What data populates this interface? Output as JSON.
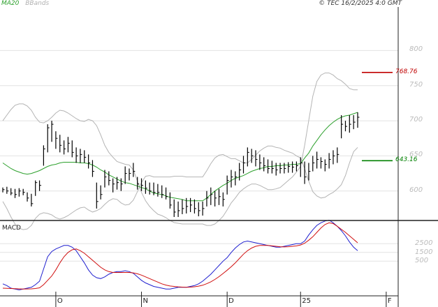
{
  "header": {
    "indicators": [
      "MA20",
      "BBands"
    ],
    "copyright": "© TEC 16/2/2025 4:0 GMT"
  },
  "levels": [
    {
      "label": "768.76",
      "value": 768.76,
      "color": "#c00000"
    },
    {
      "label": "643.16",
      "value": 643.16,
      "color": "#008000"
    }
  ],
  "macd_title": "MACD",
  "colors": {
    "ma": "#2ca02c",
    "bands": "#b4b4b4",
    "price": "#000000",
    "macd": "#1f1fcf",
    "signal": "#d01010"
  },
  "chart_data": [
    {
      "type": "line",
      "title": "",
      "ylim": [
        560,
        860
      ],
      "yticks": [
        600,
        650,
        700,
        750,
        800
      ],
      "ytick_labels": [
        "600",
        "650",
        "700",
        "750",
        "800"
      ],
      "xtick_labels": [
        "O",
        "N",
        "D",
        "25",
        "F"
      ],
      "xtick_idx": [
        13,
        34,
        55,
        73,
        94
      ],
      "series": [
        {
          "name": "MA20",
          "values": [
            640,
            636,
            632,
            629,
            627,
            625,
            624,
            625,
            627,
            629,
            632,
            635,
            637,
            638,
            640,
            641,
            641,
            641,
            641,
            640,
            640,
            639,
            637,
            634,
            630,
            627,
            623,
            620,
            617,
            614,
            612,
            611,
            609,
            607,
            605,
            603,
            600,
            597,
            596,
            595,
            593,
            591,
            590,
            589,
            588,
            586,
            586,
            586,
            586,
            586,
            590,
            595,
            600,
            604,
            608,
            611,
            615,
            618,
            620,
            622,
            625,
            628,
            630,
            632,
            633,
            635,
            635,
            636,
            636,
            637,
            637,
            638,
            638,
            639,
            647,
            654,
            664,
            672,
            680,
            687,
            693,
            698,
            702,
            705,
            707,
            708,
            710,
            712
          ]
        },
        {
          "name": "BBands",
          "values": [
            700,
            708,
            716,
            722,
            724,
            724,
            721,
            715,
            705,
            698,
            697,
            700,
            705,
            711,
            715,
            714,
            711,
            707,
            703,
            700,
            699,
            702,
            700,
            693,
            680,
            665,
            655,
            648,
            642,
            640,
            638,
            637,
            630,
            614,
            598,
            586,
            578,
            572,
            567,
            565,
            562,
            558,
            555,
            554,
            553,
            553,
            553,
            553,
            553,
            553,
            551,
            551,
            553,
            558,
            564,
            573,
            583,
            590,
            598,
            603,
            607,
            610,
            610,
            608,
            605,
            602,
            602,
            603,
            605,
            610,
            615,
            620,
            627,
            635,
            665,
            700,
            735,
            756,
            765,
            768,
            768,
            765,
            760,
            757,
            752,
            746,
            744,
            744
          ]
        },
        {
          "name": "BBandsLower",
          "values": [
            585,
            575,
            563,
            553,
            547,
            545,
            546,
            551,
            561,
            567,
            569,
            568,
            566,
            562,
            560,
            562,
            565,
            569,
            573,
            576,
            577,
            573,
            570,
            572,
            575,
            581,
            586,
            589,
            588,
            583,
            580,
            581,
            587,
            599,
            612,
            621,
            622,
            620,
            620,
            620,
            620,
            620,
            621,
            621,
            621,
            620,
            620,
            620,
            620,
            620,
            629,
            639,
            647,
            651,
            652,
            649,
            646,
            646,
            643,
            640,
            640,
            645,
            651,
            657,
            661,
            664,
            664,
            662,
            661,
            658,
            656,
            654,
            650,
            647,
            632,
            614,
            599,
            593,
            590,
            591,
            595,
            598,
            603,
            609,
            622,
            640,
            656,
            662
          ]
        }
      ],
      "ohlc": [
        {
          "h": 605,
          "l": 598,
          "c": 602
        },
        {
          "h": 606,
          "l": 596,
          "c": 600
        },
        {
          "h": 604,
          "l": 594,
          "c": 597
        },
        {
          "h": 603,
          "l": 590,
          "c": 595
        },
        {
          "h": 604,
          "l": 592,
          "c": 600
        },
        {
          "h": 603,
          "l": 594,
          "c": 598
        },
        {
          "h": 598,
          "l": 585,
          "c": 590
        },
        {
          "h": 596,
          "l": 578,
          "c": 582
        },
        {
          "h": 615,
          "l": 593,
          "c": 612
        },
        {
          "h": 615,
          "l": 600,
          "c": 608
        },
        {
          "h": 665,
          "l": 636,
          "c": 660
        },
        {
          "h": 695,
          "l": 655,
          "c": 690
        },
        {
          "h": 700,
          "l": 670,
          "c": 695
        },
        {
          "h": 685,
          "l": 660,
          "c": 675
        },
        {
          "h": 680,
          "l": 655,
          "c": 665
        },
        {
          "h": 672,
          "l": 652,
          "c": 660
        },
        {
          "h": 677,
          "l": 655,
          "c": 668
        },
        {
          "h": 672,
          "l": 648,
          "c": 655
        },
        {
          "h": 662,
          "l": 640,
          "c": 650
        },
        {
          "h": 660,
          "l": 640,
          "c": 652
        },
        {
          "h": 658,
          "l": 640,
          "c": 648
        },
        {
          "h": 652,
          "l": 632,
          "c": 640
        },
        {
          "h": 644,
          "l": 620,
          "c": 628
        },
        {
          "h": 612,
          "l": 575,
          "c": 585
        },
        {
          "h": 608,
          "l": 588,
          "c": 595
        },
        {
          "h": 630,
          "l": 605,
          "c": 620
        },
        {
          "h": 628,
          "l": 608,
          "c": 615
        },
        {
          "h": 618,
          "l": 598,
          "c": 610
        },
        {
          "h": 620,
          "l": 602,
          "c": 612
        },
        {
          "h": 618,
          "l": 600,
          "c": 610
        },
        {
          "h": 635,
          "l": 610,
          "c": 625
        },
        {
          "h": 632,
          "l": 615,
          "c": 625
        },
        {
          "h": 640,
          "l": 620,
          "c": 628
        },
        {
          "h": 620,
          "l": 602,
          "c": 610
        },
        {
          "h": 618,
          "l": 600,
          "c": 608
        },
        {
          "h": 615,
          "l": 596,
          "c": 604
        },
        {
          "h": 612,
          "l": 595,
          "c": 600
        },
        {
          "h": 612,
          "l": 594,
          "c": 598
        },
        {
          "h": 610,
          "l": 592,
          "c": 598
        },
        {
          "h": 608,
          "l": 590,
          "c": 595
        },
        {
          "h": 605,
          "l": 588,
          "c": 592
        },
        {
          "h": 598,
          "l": 575,
          "c": 580
        },
        {
          "h": 588,
          "l": 563,
          "c": 570
        },
        {
          "h": 585,
          "l": 563,
          "c": 572
        },
        {
          "h": 588,
          "l": 567,
          "c": 575
        },
        {
          "h": 590,
          "l": 568,
          "c": 578
        },
        {
          "h": 590,
          "l": 570,
          "c": 580
        },
        {
          "h": 588,
          "l": 568,
          "c": 575
        },
        {
          "h": 584,
          "l": 564,
          "c": 572
        },
        {
          "h": 585,
          "l": 565,
          "c": 575
        },
        {
          "h": 600,
          "l": 578,
          "c": 590
        },
        {
          "h": 605,
          "l": 580,
          "c": 595
        },
        {
          "h": 600,
          "l": 578,
          "c": 590
        },
        {
          "h": 603,
          "l": 580,
          "c": 592
        },
        {
          "h": 598,
          "l": 578,
          "c": 588
        },
        {
          "h": 622,
          "l": 595,
          "c": 615
        },
        {
          "h": 630,
          "l": 605,
          "c": 620
        },
        {
          "h": 628,
          "l": 608,
          "c": 620
        },
        {
          "h": 640,
          "l": 615,
          "c": 630
        },
        {
          "h": 650,
          "l": 625,
          "c": 640
        },
        {
          "h": 662,
          "l": 635,
          "c": 655
        },
        {
          "h": 660,
          "l": 640,
          "c": 650
        },
        {
          "h": 658,
          "l": 635,
          "c": 645
        },
        {
          "h": 652,
          "l": 630,
          "c": 640
        },
        {
          "h": 648,
          "l": 628,
          "c": 636
        },
        {
          "h": 645,
          "l": 625,
          "c": 632
        },
        {
          "h": 643,
          "l": 625,
          "c": 632
        },
        {
          "h": 640,
          "l": 622,
          "c": 630
        },
        {
          "h": 640,
          "l": 625,
          "c": 632
        },
        {
          "h": 640,
          "l": 625,
          "c": 632
        },
        {
          "h": 641,
          "l": 626,
          "c": 635
        },
        {
          "h": 642,
          "l": 626,
          "c": 634
        },
        {
          "h": 642,
          "l": 628,
          "c": 636
        },
        {
          "h": 648,
          "l": 620,
          "c": 640
        },
        {
          "h": 642,
          "l": 610,
          "c": 620
        },
        {
          "h": 640,
          "l": 615,
          "c": 628
        },
        {
          "h": 650,
          "l": 628,
          "c": 640
        },
        {
          "h": 656,
          "l": 632,
          "c": 645
        },
        {
          "h": 648,
          "l": 632,
          "c": 642
        },
        {
          "h": 645,
          "l": 628,
          "c": 638
        },
        {
          "h": 654,
          "l": 632,
          "c": 645
        },
        {
          "h": 658,
          "l": 638,
          "c": 650
        },
        {
          "h": 662,
          "l": 640,
          "c": 652
        },
        {
          "h": 708,
          "l": 675,
          "c": 695
        },
        {
          "h": 700,
          "l": 685,
          "c": 692
        },
        {
          "h": 708,
          "l": 683,
          "c": 695
        },
        {
          "h": 708,
          "l": 688,
          "c": 698
        },
        {
          "h": 712,
          "l": 690,
          "c": 705
        }
      ]
    },
    {
      "type": "line",
      "title": "MACD",
      "ylim": [
        -3000,
        5000
      ],
      "yticks": [
        500,
        1500,
        2500
      ],
      "ytick_labels": [
        "500",
        "1500",
        "2500"
      ],
      "series": [
        {
          "name": "MACD",
          "values": [
            -2100,
            -2300,
            -2600,
            -2700,
            -2800,
            -2700,
            -2600,
            -2500,
            -2200,
            -1800,
            -400,
            1000,
            1600,
            1900,
            2100,
            2300,
            2300,
            2100,
            1700,
            1000,
            300,
            -500,
            -1100,
            -1400,
            -1500,
            -1300,
            -1000,
            -800,
            -700,
            -700,
            -600,
            -700,
            -900,
            -1300,
            -1700,
            -2000,
            -2200,
            -2400,
            -2500,
            -2600,
            -2700,
            -2700,
            -2600,
            -2500,
            -2500,
            -2500,
            -2400,
            -2300,
            -2100,
            -1800,
            -1400,
            -1000,
            -500,
            0,
            500,
            900,
            1500,
            2000,
            2400,
            2700,
            2800,
            2700,
            2600,
            2500,
            2400,
            2300,
            2200,
            2100,
            2100,
            2200,
            2300,
            2400,
            2500,
            2500,
            2800,
            3500,
            4100,
            4600,
            4900,
            5100,
            5200,
            4900,
            4500,
            4000,
            3400,
            2700,
            2100,
            1700
          ]
        },
        {
          "name": "Signal",
          "values": [
            -2600,
            -2620,
            -2640,
            -2660,
            -2680,
            -2700,
            -2690,
            -2680,
            -2640,
            -2560,
            -2200,
            -1700,
            -1200,
            -500,
            300,
            1000,
            1500,
            1800,
            1900,
            1700,
            1400,
            1000,
            600,
            200,
            -200,
            -500,
            -700,
            -800,
            -800,
            -800,
            -800,
            -800,
            -850,
            -950,
            -1100,
            -1300,
            -1500,
            -1700,
            -1900,
            -2100,
            -2250,
            -2350,
            -2400,
            -2450,
            -2480,
            -2500,
            -2480,
            -2440,
            -2370,
            -2260,
            -2090,
            -1870,
            -1600,
            -1280,
            -920,
            -540,
            -140,
            300,
            800,
            1300,
            1700,
            2000,
            2200,
            2300,
            2300,
            2300,
            2250,
            2200,
            2150,
            2130,
            2150,
            2200,
            2250,
            2350,
            2550,
            2900,
            3300,
            3800,
            4300,
            4700,
            4900,
            4800,
            4500,
            4150,
            3800,
            3400,
            3000,
            2600
          ]
        }
      ]
    }
  ]
}
